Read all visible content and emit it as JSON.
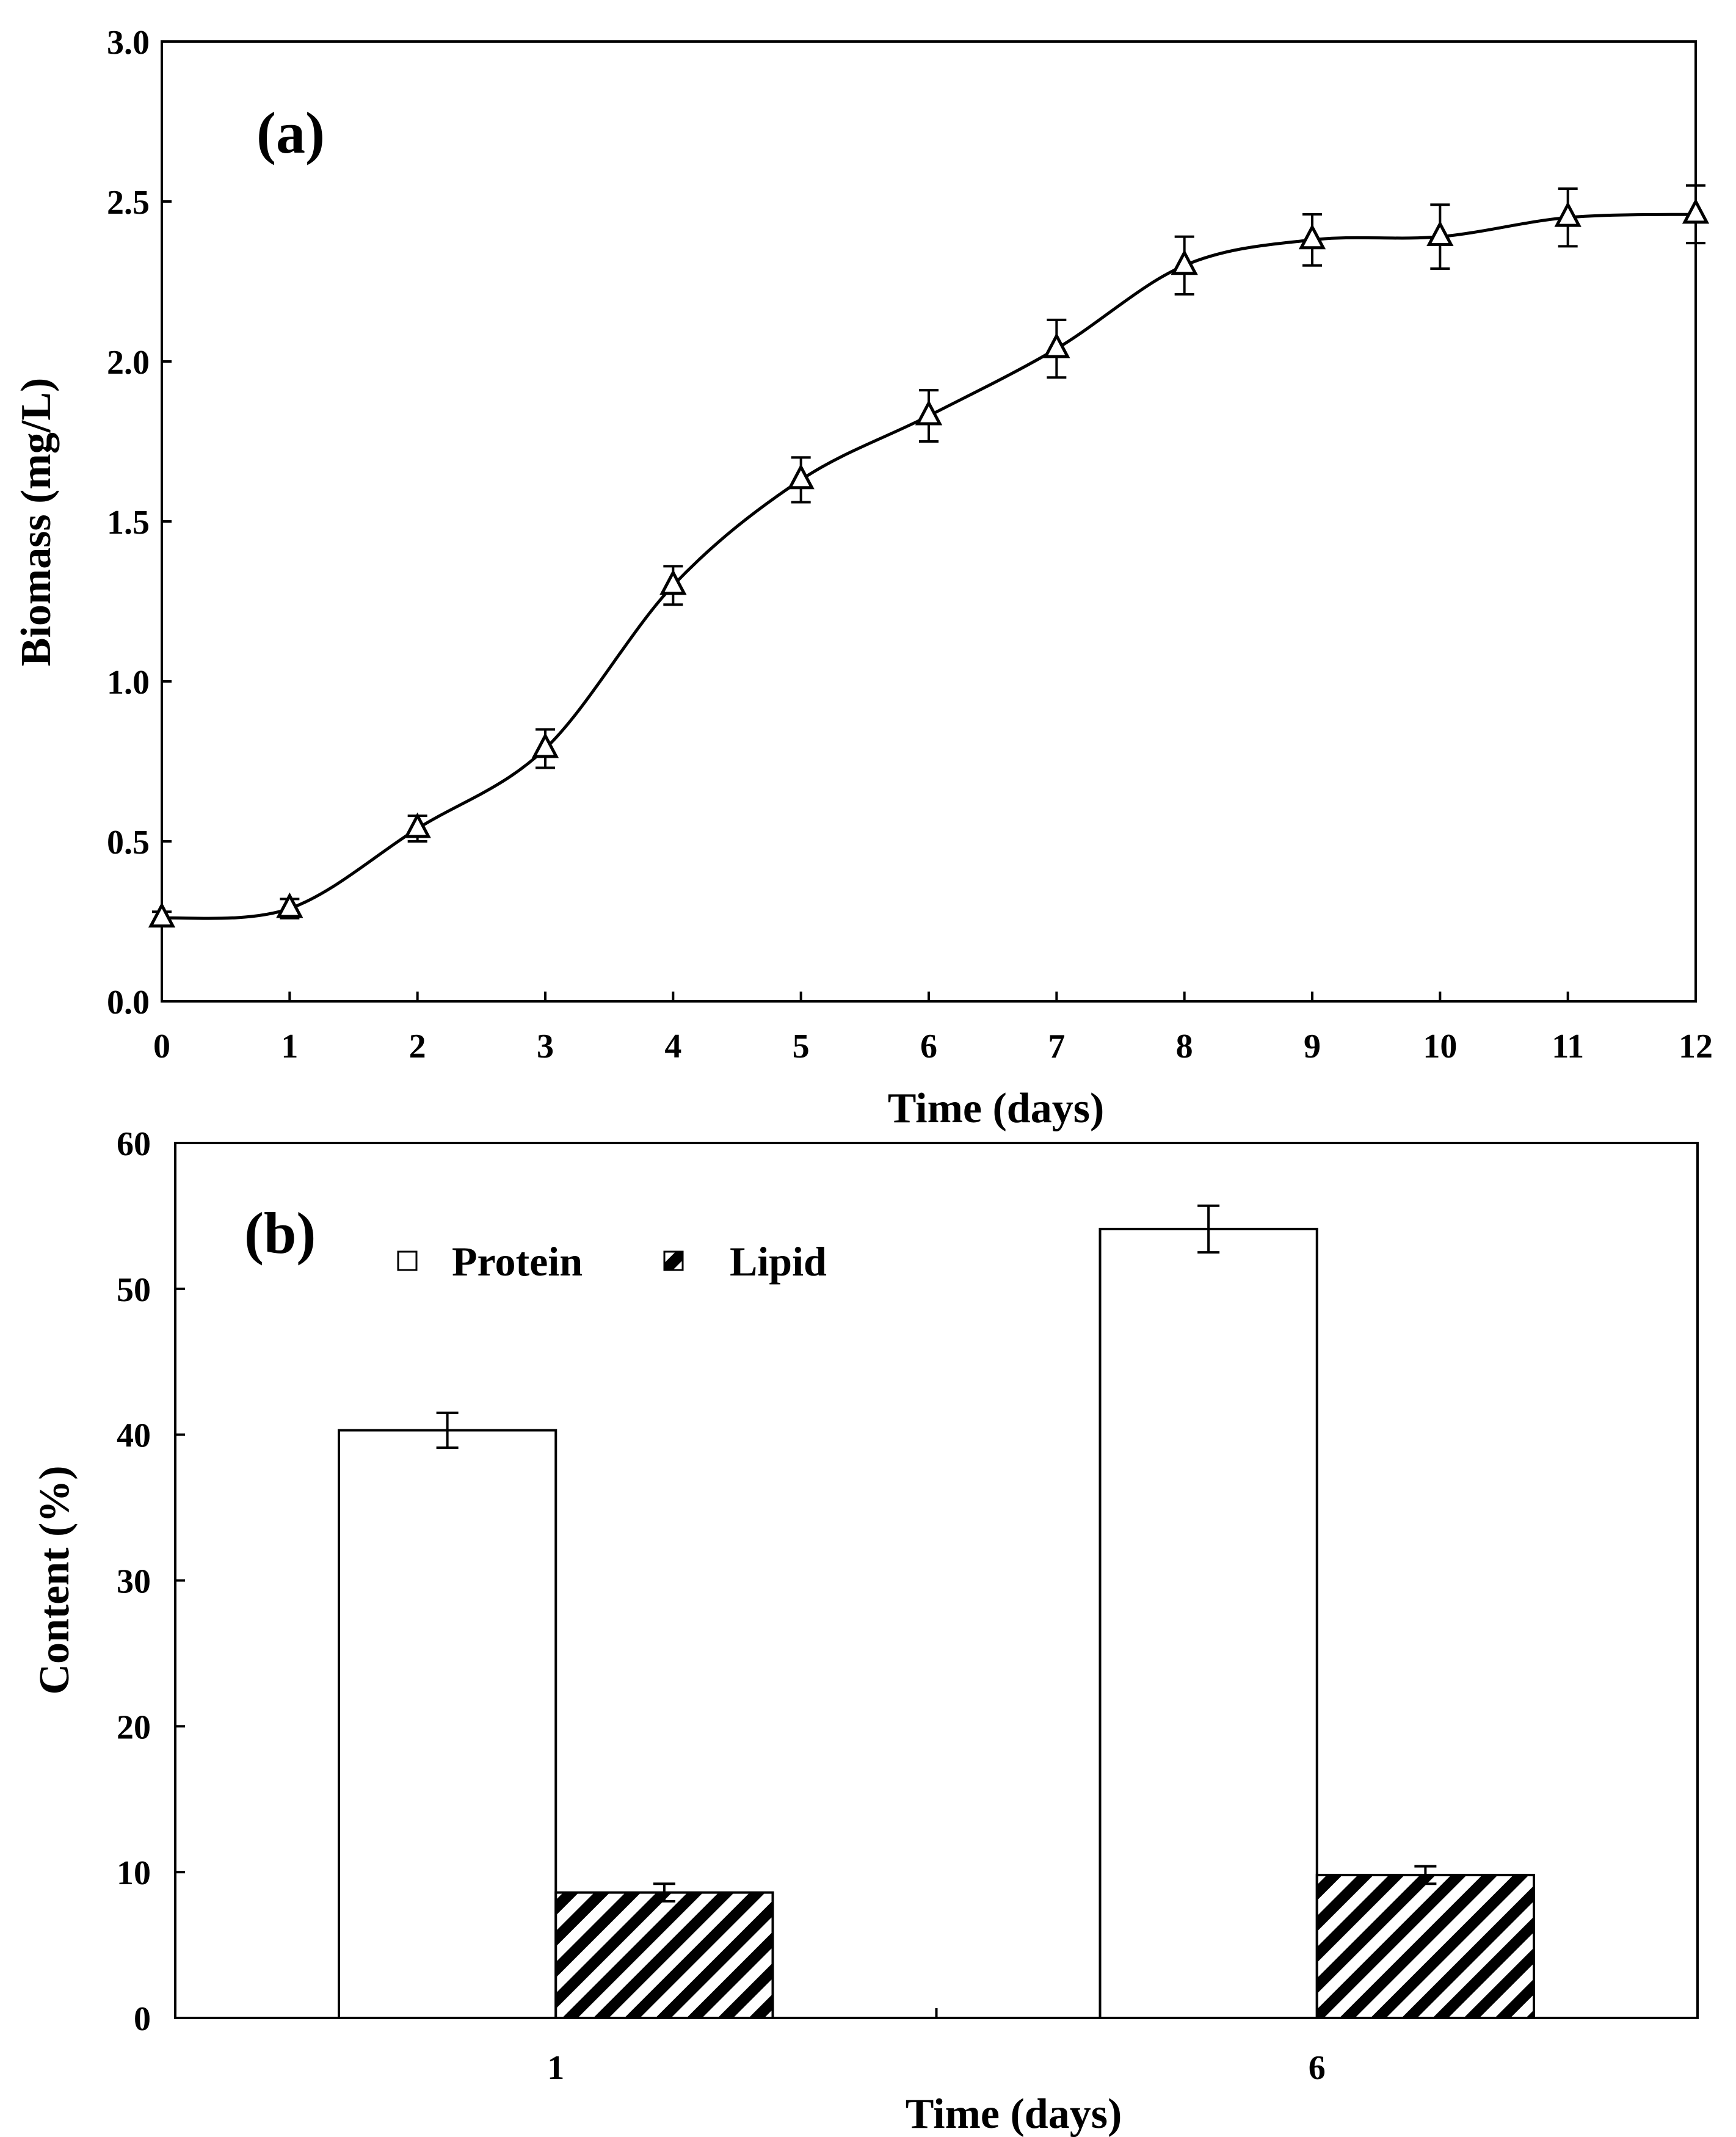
{
  "chart_data": [
    {
      "id": "panel-a",
      "type": "line",
      "panel_label": "(a)",
      "title": "",
      "xlabel": "Time (days)",
      "ylabel": "Biomass (mg/L)",
      "xlim": [
        0,
        12
      ],
      "ylim": [
        0,
        3.0
      ],
      "x_ticks": [
        "0",
        "1",
        "2",
        "3",
        "4",
        "5",
        "6",
        "7",
        "8",
        "9",
        "10",
        "11",
        "12"
      ],
      "y_ticks": [
        "0.0",
        "0.5",
        "1.0",
        "1.5",
        "2.0",
        "2.5",
        "3.0"
      ],
      "grid": false,
      "marker": "open-triangle",
      "series": [
        {
          "name": "Biomass",
          "x": [
            0,
            1,
            2,
            3,
            4,
            5,
            6,
            7,
            8,
            9,
            10,
            11,
            12
          ],
          "y": [
            0.26,
            0.29,
            0.54,
            0.79,
            1.3,
            1.63,
            1.83,
            2.04,
            2.3,
            2.38,
            2.39,
            2.45,
            2.46
          ],
          "error": [
            0.02,
            0.03,
            0.04,
            0.06,
            0.06,
            0.07,
            0.08,
            0.09,
            0.09,
            0.08,
            0.1,
            0.09,
            0.09
          ]
        }
      ]
    },
    {
      "id": "panel-b",
      "type": "bar",
      "panel_label": "(b)",
      "title": "",
      "xlabel": "Time (days)",
      "ylabel": "Content (%)",
      "categories": [
        "1",
        "6"
      ],
      "ylim": [
        0,
        60
      ],
      "y_ticks": [
        "0",
        "10",
        "20",
        "30",
        "40",
        "50",
        "60"
      ],
      "grid": false,
      "legend_position": "top-left",
      "series": [
        {
          "name": "Protein",
          "pattern": "open",
          "values": [
            40.3,
            54.1
          ],
          "error": [
            1.2,
            1.6
          ]
        },
        {
          "name": "Lipid",
          "pattern": "diagonal-hatch",
          "values": [
            8.6,
            9.8
          ],
          "error": [
            0.6,
            0.6
          ]
        }
      ]
    }
  ]
}
